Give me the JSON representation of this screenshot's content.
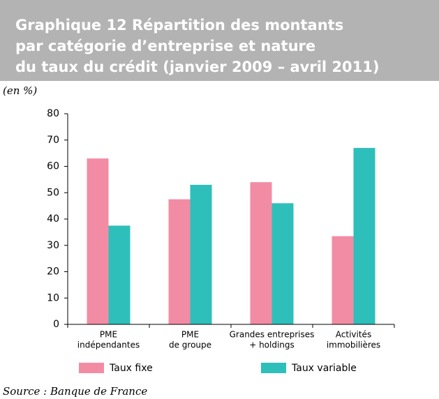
{
  "chart_data": {
    "type": "bar",
    "title": [
      "Graphique 12  Répartition des montants",
      "par catégorie d’entreprise et nature",
      "du taux du crédit (janvier 2009 – avril 2011)"
    ],
    "subtitle": "(en %)",
    "source": "Source : Banque de France",
    "categories": [
      [
        "PME",
        "indépendantes"
      ],
      [
        "PME",
        "de groupe"
      ],
      [
        "Grandes entreprises",
        "+ holdings"
      ],
      [
        "Activités",
        "immobilières"
      ]
    ],
    "series": [
      {
        "name": "Taux fixe",
        "color": "#f28ca4",
        "values": [
          63,
          47.5,
          54,
          33.5
        ]
      },
      {
        "name": "Taux variable",
        "color": "#2ebfbb",
        "values": [
          37.5,
          53,
          46,
          67
        ]
      }
    ],
    "ylim": [
      0,
      80
    ],
    "yticks": [
      0,
      10,
      20,
      30,
      40,
      50,
      60,
      70,
      80
    ],
    "legend": "bottom"
  }
}
